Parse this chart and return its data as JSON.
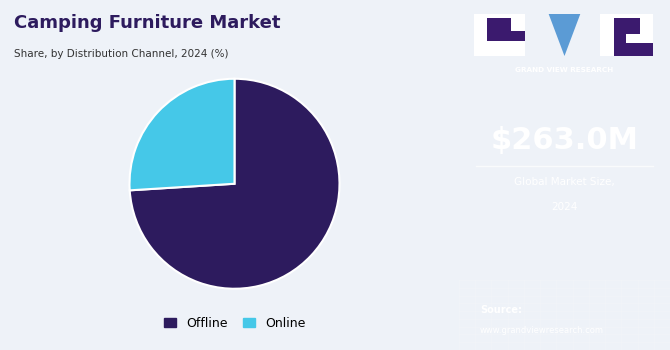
{
  "title_main": "Camping Furniture Market",
  "title_sub": "Share, by Distribution Channel, 2024 (%)",
  "pie_values": [
    74,
    26
  ],
  "pie_labels": [
    "Offline",
    "Online"
  ],
  "pie_colors": [
    "#2d1b5e",
    "#45c8e8"
  ],
  "pie_startangle": 90,
  "left_bg": "#eef2f8",
  "right_bg": "#3b1a6e",
  "right_bg_bottom": "#4a5aad",
  "market_size": "$263.0M",
  "market_label1": "Global Market Size,",
  "market_label2": "2024",
  "source_label": "Source:",
  "source_url": "www.grandviewresearch.com",
  "brand_name": "GRAND VIEW RESEARCH",
  "title_color": "#2d1b5e",
  "subtitle_color": "#333333",
  "legend_offline_color": "#2d1b5e",
  "legend_online_color": "#45c8e8",
  "logo_triangle_color": "#5b9bd5"
}
